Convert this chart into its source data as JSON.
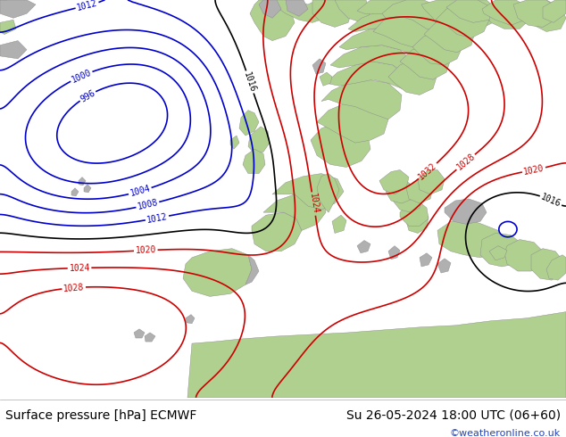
{
  "title_left": "Surface pressure [hPa] ECMWF",
  "title_right": "Su 26-05-2024 18:00 UTC (06+60)",
  "copyright": "©weatheronline.co.uk",
  "bg_color": "#ffffff",
  "map_bg_ocean": "#d8d8d8",
  "map_bg_land_green": "#b0d090",
  "map_bg_land_gray": "#b0b0b0",
  "footer_font_size": 10,
  "copyright_color": "#2244bb",
  "fig_width": 6.34,
  "fig_height": 4.9,
  "isobar_low_color": "#0000cc",
  "isobar_high_color": "#cc0000",
  "isobar_mid_color": "#000000",
  "label_fontsize": 7,
  "contour_lw": 1.2
}
